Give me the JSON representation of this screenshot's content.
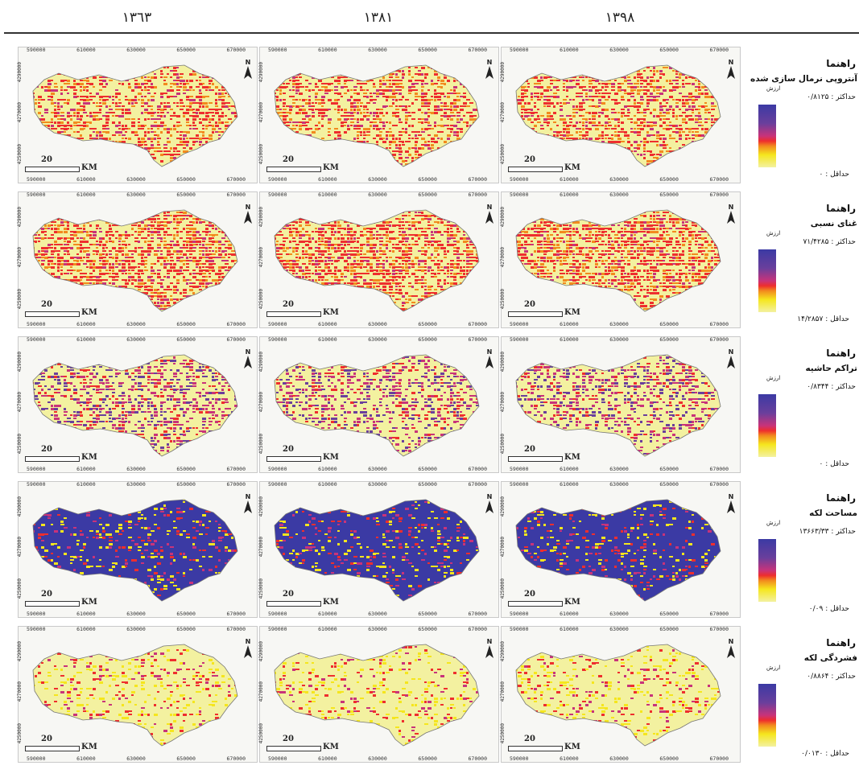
{
  "years": [
    "١٣٦٣",
    "١٣٨١",
    "١٣٩٨"
  ],
  "x_ticks": [
    "590000",
    "610000",
    "630000",
    "650000",
    "670000"
  ],
  "y_ticks": [
    "4290000",
    "4270000",
    "4250000"
  ],
  "map_labels": {
    "north": "N",
    "scale_number": "20",
    "scale_unit": "KM"
  },
  "legends": [
    {
      "title": "راهنما",
      "name": "آنتروپی نرمال سازی شده",
      "value_label": "ارزش",
      "max": "حداکثر : ۰/۸۱۲۵",
      "min": "حداقل : ۰"
    },
    {
      "title": "راهنما",
      "name": "غنای نسبی",
      "value_label": "ارزش",
      "max": "حداکثر : ۷۱/۴۲۸۵",
      "min": "حداقل : ۱۴/۲۸۵۷"
    },
    {
      "title": "راهنما",
      "name": "تراکم حاشیه",
      "value_label": "ارزش",
      "max": "حداکثر : ۰/۸۳۴۴",
      "min": "حداقل : ۰"
    },
    {
      "title": "راهنما",
      "name": "مساحت لکه",
      "value_label": "ارزش",
      "max": "حداکثر : ۱۳۶۶۳/۳۳",
      "min": "حداقل : ۰/۰۹"
    },
    {
      "title": "راهنما",
      "name": "فشردگی لکه",
      "value_label": "ارزش",
      "max": "حداکثر : ۰/۸۸۶۴",
      "min": "حداقل : ۰/۰۱۳۰"
    }
  ],
  "colors": {
    "low": "#f3f1a0",
    "yellow": "#f5e61d",
    "orange": "#f28a1e",
    "red": "#ee2e2e",
    "magenta": "#c8337a",
    "purple": "#6a3f9c",
    "blue": "#3b3aa4"
  }
}
